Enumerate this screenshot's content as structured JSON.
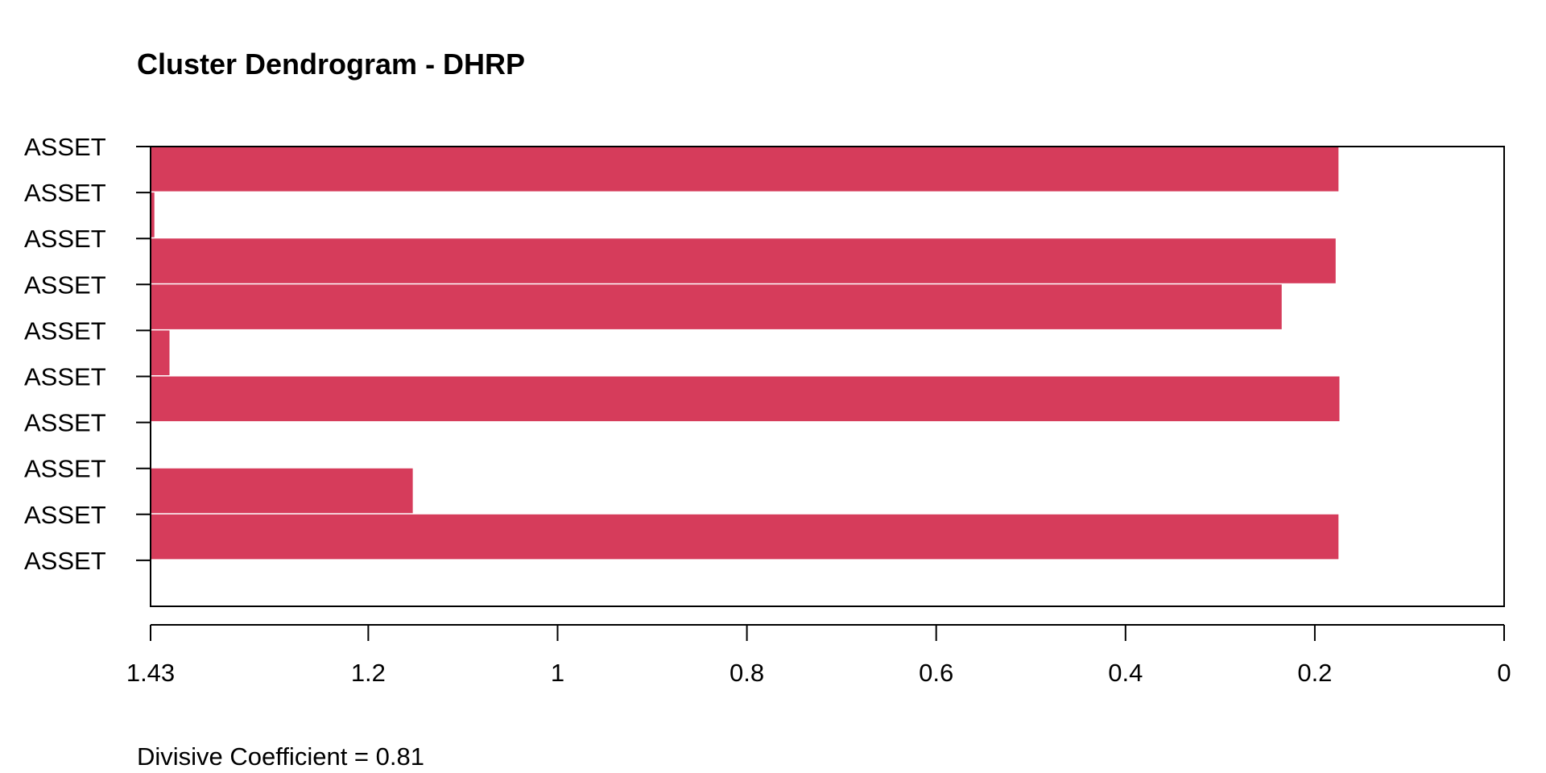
{
  "chart_data": {
    "type": "bar",
    "orientation": "horizontal",
    "title": "Cluster Dendrogram - DHRP",
    "xlabel": "",
    "ylabel": "",
    "xlim": [
      1.43,
      0
    ],
    "x_tick_labels": [
      "1.43",
      "1.2",
      "1",
      "0.8",
      "0.6",
      "0.4",
      "0.2",
      "0"
    ],
    "x_tick_values": [
      1.43,
      1.2,
      1.0,
      0.8,
      0.6,
      0.4,
      0.2,
      0.0
    ],
    "categories": [
      "ASSET",
      "ASSET",
      "ASSET",
      "ASSET",
      "ASSET",
      "ASSET",
      "ASSET",
      "ASSET",
      "ASSET",
      "ASSET"
    ],
    "bars": [
      {
        "from": 0.175
      },
      {
        "from": 1.426
      },
      {
        "from": 0.178
      },
      {
        "from": 0.235
      },
      {
        "from": 1.41
      },
      {
        "from": 0.174
      },
      {
        "from": 1.43
      },
      {
        "from": 1.153
      },
      {
        "from": 0.175
      },
      {
        "from": 1.43
      }
    ],
    "bar_color": "#d63c5b",
    "footer": "Divisive Coefficient =  0.81",
    "grid": false,
    "legend": "none"
  }
}
